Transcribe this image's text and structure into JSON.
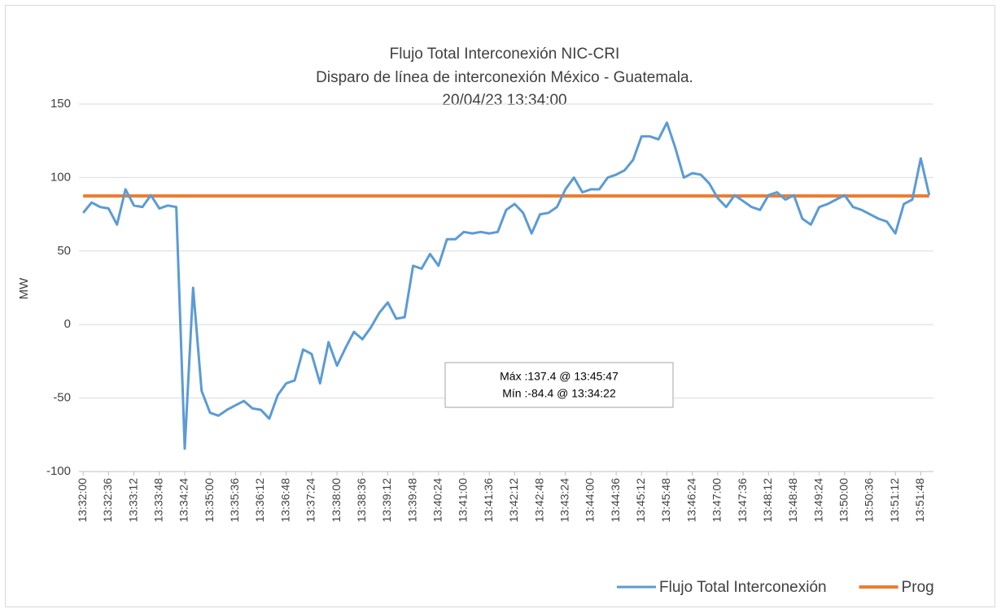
{
  "chart_data": {
    "type": "line",
    "title": "Flujo Total Interconexión NIC-CRI",
    "subtitle": "Disparo de línea de interconexión México - Guatemala.",
    "subtitle2": "20/04/23 13:34:00",
    "ylabel": "MW",
    "annotations": [
      "Máx :137.4 @ 13:45:47",
      "Mín :-84.4 @ 13:34:22"
    ],
    "categories": [
      "13:32:00",
      null,
      null,
      "13:32:36",
      null,
      null,
      "13:33:12",
      null,
      null,
      "13:33:48",
      null,
      null,
      "13:34:24",
      null,
      null,
      "13:35:00",
      null,
      null,
      "13:35:36",
      null,
      null,
      "13:36:12",
      null,
      null,
      "13:36:48",
      null,
      null,
      "13:37:24",
      null,
      null,
      "13:38:00",
      null,
      null,
      "13:38:36",
      null,
      null,
      "13:39:12",
      null,
      null,
      "13:39:48",
      null,
      null,
      "13:40:24",
      null,
      null,
      "13:41:00",
      null,
      null,
      "13:41:36",
      null,
      null,
      "13:42:12",
      null,
      null,
      "13:42:48",
      null,
      null,
      "13:43:24",
      null,
      null,
      "13:44:00",
      null,
      null,
      "13:44:36",
      null,
      null,
      "13:45:12",
      null,
      null,
      "13:45:48",
      null,
      null,
      "13:46:24",
      null,
      null,
      "13:47:00",
      null,
      null,
      "13:47:36",
      null,
      null,
      "13:48:12",
      null,
      null,
      "13:48:48",
      null,
      null,
      "13:49:24",
      null,
      null,
      "13:50:00",
      null,
      null,
      "13:50:36",
      null,
      null,
      "13:51:12",
      null,
      null,
      "13:51:48",
      null
    ],
    "series": [
      {
        "name": "Flujo Total Interconexión",
        "color": "#5b9bd5",
        "values": [
          76,
          83,
          80,
          79,
          68,
          92,
          81,
          80,
          88,
          79,
          81,
          80,
          -84.4,
          25,
          -45,
          -60,
          -62,
          -58,
          -55,
          -52,
          -57,
          -58,
          -64,
          -48,
          -40,
          -38,
          -17,
          -20,
          -40,
          -12,
          -28,
          -16,
          -5,
          -10,
          -2,
          8,
          15,
          4,
          5,
          40,
          38,
          48,
          40,
          58,
          58,
          63,
          62,
          63,
          62,
          63,
          78,
          82,
          76,
          62,
          75,
          76,
          80,
          92,
          100,
          90,
          92,
          92,
          100,
          102,
          105,
          112,
          128,
          128,
          126,
          137.4,
          120,
          100,
          103,
          102,
          96,
          86,
          80,
          88,
          84,
          80,
          78,
          88,
          90,
          85,
          88,
          72,
          68,
          80,
          82,
          85,
          88,
          80,
          78,
          75,
          72,
          70,
          62,
          82,
          85,
          113,
          88
        ]
      },
      {
        "name": "Prog",
        "color": "#ed7d31",
        "values": [
          87.5,
          87.5,
          87.5,
          87.5,
          87.5,
          87.5,
          87.5,
          87.5,
          87.5,
          87.5,
          87.5,
          87.5,
          87.5,
          87.5,
          87.5,
          87.5,
          87.5,
          87.5,
          87.5,
          87.5,
          87.5,
          87.5,
          87.5,
          87.5,
          87.5,
          87.5,
          87.5,
          87.5,
          87.5,
          87.5,
          87.5,
          87.5,
          87.5,
          87.5,
          87.5,
          87.5,
          87.5,
          87.5,
          87.5,
          87.5,
          87.5,
          87.5,
          87.5,
          87.5,
          87.5,
          87.5,
          87.5,
          87.5,
          87.5,
          87.5,
          87.5,
          87.5,
          87.5,
          87.5,
          87.5,
          87.5,
          87.5,
          87.5,
          87.5,
          87.5,
          87.5,
          87.5,
          87.5,
          87.5,
          87.5,
          87.5,
          87.5,
          87.5,
          87.5,
          87.5,
          87.5,
          87.5,
          87.5,
          87.5,
          87.5,
          87.5,
          87.5,
          87.5,
          87.5,
          87.5,
          87.5,
          87.5,
          87.5,
          87.5,
          87.5,
          87.5,
          87.5,
          87.5,
          87.5,
          87.5,
          87.5,
          87.5,
          87.5,
          87.5,
          87.5,
          87.5,
          87.5,
          87.5,
          87.5,
          87.5,
          87.5
        ]
      }
    ],
    "ylim": [
      -100,
      150
    ],
    "yticks": [
      -100,
      -50,
      0,
      50,
      100,
      150
    ],
    "grid": true
  }
}
